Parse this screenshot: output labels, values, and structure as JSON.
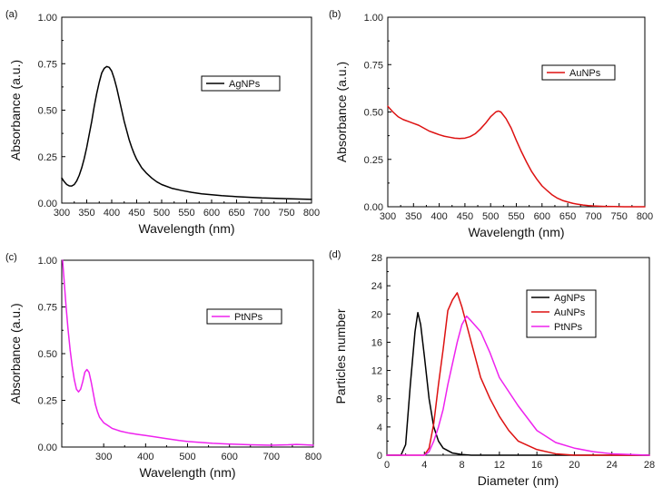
{
  "chart_data": [
    {
      "panel": "(a)",
      "type": "line",
      "xlabel": "Wavelength (nm)",
      "ylabel": "Absorbance (a.u.)",
      "xlim": [
        300,
        800
      ],
      "ylim": [
        0,
        1.0
      ],
      "xticks": [
        "300",
        "350",
        "400",
        "450",
        "500",
        "550",
        "600",
        "650",
        "700",
        "750",
        "800"
      ],
      "yticks": [
        "0.00",
        "0.25",
        "0.50",
        "0.75",
        "1.00"
      ],
      "legend": {
        "position": "top-right"
      },
      "series": [
        {
          "name": "AgNPs",
          "color": "#000000",
          "x": [
            300,
            305,
            310,
            315,
            320,
            325,
            330,
            335,
            340,
            345,
            350,
            355,
            360,
            365,
            370,
            375,
            380,
            385,
            390,
            395,
            400,
            405,
            410,
            415,
            420,
            425,
            430,
            435,
            440,
            445,
            450,
            460,
            470,
            480,
            490,
            500,
            520,
            540,
            560,
            580,
            600,
            620,
            650,
            700,
            750,
            800
          ],
          "y": [
            0.135,
            0.115,
            0.1,
            0.093,
            0.092,
            0.1,
            0.12,
            0.15,
            0.19,
            0.24,
            0.3,
            0.37,
            0.44,
            0.52,
            0.59,
            0.65,
            0.7,
            0.725,
            0.735,
            0.73,
            0.71,
            0.67,
            0.62,
            0.56,
            0.5,
            0.44,
            0.39,
            0.34,
            0.3,
            0.265,
            0.235,
            0.19,
            0.16,
            0.135,
            0.115,
            0.1,
            0.08,
            0.068,
            0.058,
            0.05,
            0.045,
            0.04,
            0.035,
            0.028,
            0.024,
            0.02
          ]
        }
      ]
    },
    {
      "panel": "(b)",
      "type": "line",
      "xlabel": "Wavelength (nm)",
      "ylabel": "Absorbance (a.u.)",
      "xlim": [
        300,
        800
      ],
      "ylim": [
        0,
        1.0
      ],
      "xticks": [
        "300",
        "350",
        "400",
        "450",
        "500",
        "550",
        "600",
        "650",
        "700",
        "750",
        "800"
      ],
      "yticks": [
        "0.00",
        "0.25",
        "0.50",
        "0.75",
        "1.00"
      ],
      "legend": {
        "position": "top-right"
      },
      "series": [
        {
          "name": "AuNPs",
          "color": "#dd1111",
          "x": [
            300,
            310,
            320,
            330,
            340,
            350,
            360,
            370,
            380,
            390,
            400,
            410,
            420,
            430,
            440,
            450,
            460,
            470,
            480,
            490,
            500,
            510,
            515,
            520,
            530,
            540,
            550,
            560,
            570,
            580,
            590,
            600,
            610,
            620,
            630,
            640,
            650,
            660,
            670,
            680,
            690,
            700,
            720,
            740,
            760,
            780,
            800
          ],
          "y": [
            0.53,
            0.5,
            0.475,
            0.46,
            0.45,
            0.44,
            0.43,
            0.415,
            0.4,
            0.39,
            0.38,
            0.372,
            0.367,
            0.362,
            0.36,
            0.362,
            0.37,
            0.385,
            0.41,
            0.44,
            0.475,
            0.5,
            0.505,
            0.5,
            0.465,
            0.415,
            0.35,
            0.29,
            0.235,
            0.185,
            0.145,
            0.11,
            0.085,
            0.062,
            0.045,
            0.033,
            0.025,
            0.018,
            0.013,
            0.009,
            0.006,
            0.004,
            0.002,
            0.001,
            0.0,
            0.0,
            0.0
          ]
        }
      ]
    },
    {
      "panel": "(c)",
      "type": "line",
      "xlabel": "Wavelength (nm)",
      "ylabel": "Absorbance (a.u.)",
      "xlim": [
        200,
        800
      ],
      "ylim": [
        0,
        1.0
      ],
      "xticks": [
        "300",
        "400",
        "500",
        "600",
        "700",
        "800"
      ],
      "yticks": [
        "0.00",
        "0.25",
        "0.50",
        "0.75",
        "1.00"
      ],
      "legend": {
        "position": "top-right"
      },
      "series": [
        {
          "name": "PtNPs",
          "color": "#ee22ee",
          "x": [
            202,
            206,
            210,
            215,
            220,
            225,
            230,
            235,
            240,
            245,
            250,
            255,
            260,
            265,
            270,
            275,
            280,
            285,
            290,
            300,
            310,
            320,
            340,
            360,
            380,
            400,
            420,
            450,
            480,
            500,
            530,
            560,
            600,
            650,
            700,
            740,
            760,
            780,
            800
          ],
          "y": [
            1.0,
            0.88,
            0.76,
            0.63,
            0.52,
            0.43,
            0.36,
            0.31,
            0.295,
            0.31,
            0.35,
            0.4,
            0.415,
            0.4,
            0.35,
            0.29,
            0.23,
            0.19,
            0.16,
            0.13,
            0.115,
            0.1,
            0.085,
            0.075,
            0.068,
            0.062,
            0.055,
            0.045,
            0.035,
            0.03,
            0.025,
            0.02,
            0.016,
            0.012,
            0.01,
            0.012,
            0.014,
            0.012,
            0.01
          ]
        }
      ]
    },
    {
      "panel": "(d)",
      "type": "line",
      "xlabel": "Diameter (nm)",
      "ylabel": "Particles number",
      "xlim": [
        0,
        28
      ],
      "ylim": [
        0,
        28
      ],
      "xticks": [
        "0",
        "4",
        "8",
        "12",
        "16",
        "20",
        "24",
        "28"
      ],
      "yticks": [
        "0",
        "4",
        "8",
        "12",
        "16",
        "20",
        "24",
        "28"
      ],
      "legend": {
        "position": "top-right"
      },
      "series": [
        {
          "name": "AgNPs",
          "color": "#000000",
          "x": [
            0,
            1.5,
            2,
            2.5,
            3,
            3.3,
            3.6,
            4,
            4.5,
            5,
            5.5,
            6,
            7,
            8,
            9,
            10,
            12,
            16,
            20,
            28
          ],
          "y": [
            0,
            0,
            1.5,
            10,
            17.5,
            20.2,
            18.5,
            14,
            8,
            4,
            2,
            1,
            0.3,
            0.1,
            0,
            0,
            0,
            0,
            0,
            0
          ]
        },
        {
          "name": "AuNPs",
          "color": "#dd1111",
          "x": [
            0,
            4,
            4.5,
            5,
            5.5,
            6,
            6.5,
            7,
            7.5,
            8,
            9,
            10,
            11,
            12,
            13,
            14,
            16,
            18,
            20,
            28
          ],
          "y": [
            0,
            0,
            1,
            4.5,
            10,
            15,
            20.5,
            22,
            23,
            21,
            16,
            11,
            8,
            5.5,
            3.5,
            2,
            0.8,
            0.2,
            0,
            0
          ]
        },
        {
          "name": "PtNPs",
          "color": "#ee22ee",
          "x": [
            0,
            4,
            4.5,
            5,
            5.5,
            6,
            6.5,
            7,
            7.5,
            8,
            8.5,
            9,
            10,
            11,
            12,
            14,
            16,
            18,
            20,
            22,
            24,
            26,
            28
          ],
          "y": [
            0,
            0,
            0.5,
            2,
            4,
            6.5,
            10,
            13,
            16,
            18.5,
            19.7,
            19,
            17.5,
            14.5,
            11,
            7,
            3.5,
            1.8,
            1,
            0.5,
            0.2,
            0.1,
            0
          ]
        }
      ]
    }
  ]
}
